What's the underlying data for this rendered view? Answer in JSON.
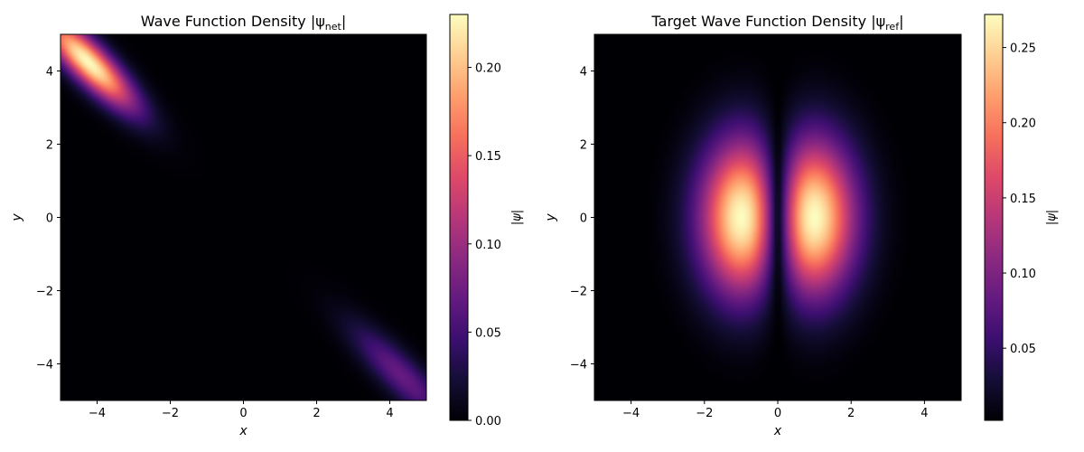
{
  "chart_data": [
    {
      "type": "heatmap",
      "title": "Wave Function Density |ψ",
      "title_subscript": "net",
      "title_end": "|",
      "xlabel": "x",
      "ylabel": "y",
      "colorbar_label": "|ψ|",
      "colormap": "magma",
      "xlim": [
        -5,
        5
      ],
      "ylim": [
        -5,
        5
      ],
      "x_ticks": [
        -4,
        -2,
        0,
        2,
        4
      ],
      "y_ticks": [
        -4,
        -2,
        0,
        2,
        4
      ],
      "x_tick_labels": [
        "−4",
        "−2",
        "0",
        "2",
        "4"
      ],
      "y_tick_labels": [
        "−4",
        "−2",
        "0",
        "2",
        "4"
      ],
      "colorbar_range": [
        0,
        0.23
      ],
      "colorbar_ticks": [
        0.0,
        0.05,
        0.1,
        0.15,
        0.2
      ],
      "colorbar_tick_labels": [
        "0.00",
        "0.05",
        "0.10",
        "0.15",
        "0.20"
      ],
      "features": [
        {
          "description": "bright diagonal lobe",
          "center": [
            -4.2,
            4.2
          ],
          "peak": 0.23
        },
        {
          "description": "faint diagonal lobe",
          "center": [
            4.3,
            -4.3
          ],
          "peak": 0.07
        }
      ]
    },
    {
      "type": "heatmap",
      "title": "Target Wave Function Density |ψ",
      "title_subscript": "ref",
      "title_end": "|",
      "xlabel": "x",
      "ylabel": "y",
      "colorbar_label": "|ψ|",
      "colormap": "magma",
      "xlim": [
        -5,
        5
      ],
      "ylim": [
        -5,
        5
      ],
      "x_ticks": [
        -4,
        -2,
        0,
        2,
        4
      ],
      "y_ticks": [
        -4,
        -2,
        0,
        2,
        4
      ],
      "x_tick_labels": [
        "−4",
        "−2",
        "0",
        "2",
        "4"
      ],
      "y_tick_labels": [
        "−4",
        "−2",
        "0",
        "2",
        "4"
      ],
      "colorbar_range": [
        0.002,
        0.272
      ],
      "colorbar_ticks": [
        0.05,
        0.1,
        0.15,
        0.2,
        0.25
      ],
      "colorbar_tick_labels": [
        "0.05",
        "0.10",
        "0.15",
        "0.20",
        "0.25"
      ],
      "features": [
        {
          "description": "left lobe",
          "center": [
            -1.0,
            0.0
          ],
          "peak": 0.27
        },
        {
          "description": "right lobe",
          "center": [
            1.0,
            0.0
          ],
          "peak": 0.27
        },
        {
          "description": "nodal line",
          "x": 0.0
        }
      ]
    }
  ]
}
